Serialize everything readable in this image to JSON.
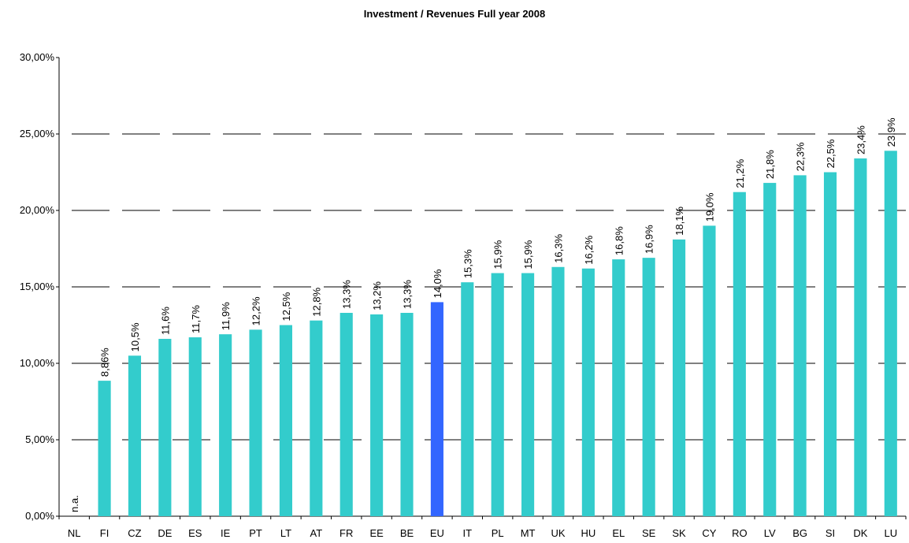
{
  "chart_data": {
    "type": "bar",
    "title": "Investment / Revenues Full year 2008",
    "categories": [
      "NL",
      "FI",
      "CZ",
      "DE",
      "ES",
      "IE",
      "PT",
      "LT",
      "AT",
      "FR",
      "EE",
      "BE",
      "EU",
      "IT",
      "PL",
      "MT",
      "UK",
      "HU",
      "EL",
      "SE",
      "SK",
      "CY",
      "RO",
      "LV",
      "BG",
      "SI",
      "DK",
      "LU"
    ],
    "values": [
      null,
      8.86,
      10.5,
      11.6,
      11.7,
      11.9,
      12.2,
      12.5,
      12.8,
      13.3,
      13.2,
      13.3,
      14.0,
      15.3,
      15.9,
      15.9,
      16.3,
      16.2,
      16.8,
      16.9,
      18.1,
      19.0,
      21.2,
      21.8,
      22.3,
      22.5,
      23.4,
      23.9
    ],
    "value_labels": [
      "n.a.",
      "8,86%",
      "10,5%",
      "11,6%",
      "11,7%",
      "11,9%",
      "12,2%",
      "12,5%",
      "12,8%",
      "13,3%",
      "13,2%",
      "13,3%",
      "14,0%",
      "15,3%",
      "15,9%",
      "15,9%",
      "16,3%",
      "16,2%",
      "16,8%",
      "16,9%",
      "18,1%",
      "19,0%",
      "21,2%",
      "21,8%",
      "22,3%",
      "22,5%",
      "23,4%",
      "23,9%"
    ],
    "colors": [
      "#33cccc",
      "#33cccc",
      "#33cccc",
      "#33cccc",
      "#33cccc",
      "#33cccc",
      "#33cccc",
      "#33cccc",
      "#33cccc",
      "#33cccc",
      "#33cccc",
      "#33cccc",
      "#3366ff",
      "#33cccc",
      "#33cccc",
      "#33cccc",
      "#33cccc",
      "#33cccc",
      "#33cccc",
      "#33cccc",
      "#33cccc",
      "#33cccc",
      "#33cccc",
      "#33cccc",
      "#33cccc",
      "#33cccc",
      "#33cccc",
      "#33cccc"
    ],
    "ylim": [
      0,
      30
    ],
    "yticks": [
      {
        "value": 0,
        "label": "0,00%"
      },
      {
        "value": 5,
        "label": "5,00%"
      },
      {
        "value": 10,
        "label": "10,00%"
      },
      {
        "value": 15,
        "label": "15,00%"
      },
      {
        "value": 20,
        "label": "20,00%"
      },
      {
        "value": 25,
        "label": "25,00%"
      },
      {
        "value": 30,
        "label": "30,00%"
      }
    ],
    "grid": true
  }
}
